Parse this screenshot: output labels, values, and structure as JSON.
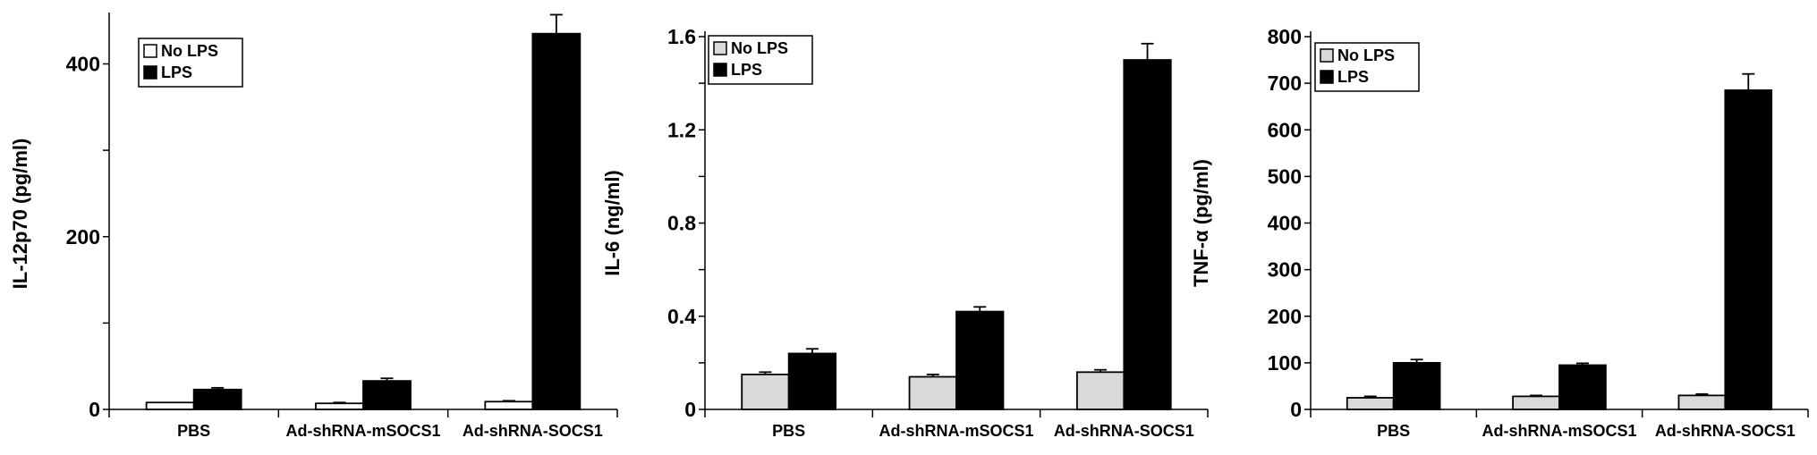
{
  "chart_data": [
    {
      "type": "bar",
      "categories": [
        "PBS",
        "Ad-shRNA-mSOCS1",
        "Ad-shRNA-SOCS1"
      ],
      "series": [
        {
          "name": "No LPS",
          "values": [
            8,
            7,
            9
          ],
          "errors": [
            0,
            1,
            1
          ],
          "color": "#ffffff"
        },
        {
          "name": "LPS",
          "values": [
            23,
            33,
            435
          ],
          "errors": [
            2,
            3,
            22
          ],
          "color": "#000000"
        }
      ],
      "ylabel": "IL-12p70 (pg/ml)",
      "ylim": [
        0,
        453.3
      ],
      "yticks": [
        0,
        200,
        400
      ],
      "legend": "top-left"
    },
    {
      "type": "bar",
      "categories": [
        "PBS",
        "Ad-shRNA-mSOCS1",
        "Ad-shRNA-SOCS1"
      ],
      "series": [
        {
          "name": "No LPS",
          "values": [
            0.15,
            0.14,
            0.16
          ],
          "errors": [
            0.01,
            0.01,
            0.01
          ],
          "color": "#d9d9d9"
        },
        {
          "name": "LPS",
          "values": [
            0.24,
            0.42,
            1.5
          ],
          "errors": [
            0.02,
            0.02,
            0.07
          ],
          "color": "#000000"
        }
      ],
      "ylabel": "IL-6 (ng/ml)",
      "ylim": [
        0,
        1.6
      ],
      "yticks": [
        "0",
        "0.4",
        "0.8",
        "1.2",
        "1.6"
      ],
      "legend": "top-left"
    },
    {
      "type": "bar",
      "categories": [
        "PBS",
        "Ad-shRNA-mSOCS1",
        "Ad-shRNA-SOCS1"
      ],
      "series": [
        {
          "name": "No LPS",
          "values": [
            25,
            28,
            30
          ],
          "errors": [
            3,
            2,
            3
          ],
          "color": "#d9d9d9"
        },
        {
          "name": "LPS",
          "values": [
            100,
            95,
            685
          ],
          "errors": [
            7,
            4,
            35
          ],
          "color": "#000000"
        }
      ],
      "ylabel": "TNF-α (pg/ml)",
      "ylim": [
        0,
        800
      ],
      "yticks": [
        0,
        100,
        200,
        300,
        400,
        500,
        600,
        700,
        800
      ],
      "legend": "top-left"
    }
  ]
}
